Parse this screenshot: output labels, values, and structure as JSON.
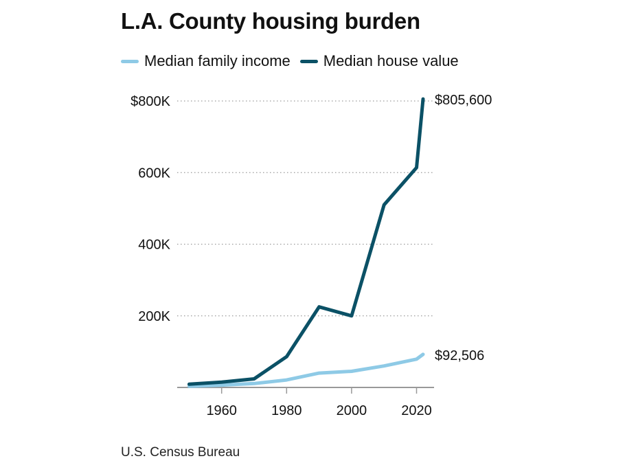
{
  "header": {
    "title": "L.A. County housing burden"
  },
  "legend": [
    {
      "label": "Median family income",
      "color": "#8ecae6"
    },
    {
      "label": "Median house value",
      "color": "#0b5166"
    }
  ],
  "source": "U.S. Census Bureau",
  "chart_data": {
    "type": "line",
    "title": "L.A. County housing burden",
    "xlabel": "",
    "ylabel": "",
    "xlim": [
      1945,
      2025
    ],
    "ylim": [
      0,
      800000
    ],
    "x_ticks": [
      1960,
      1980,
      2000,
      2020
    ],
    "x_tick_labels": [
      "1960",
      "1980",
      "2000",
      "2020"
    ],
    "y_ticks": [
      200000,
      400000,
      600000,
      800000
    ],
    "y_tick_labels": [
      "200K",
      "400K",
      "600K",
      "$800K"
    ],
    "grid": "horizontal dotted",
    "legend_position": "top-left",
    "series": [
      {
        "name": "Median family income",
        "color": "#8ecae6",
        "x": [
          1950,
          1960,
          1970,
          1980,
          1990,
          2000,
          2010,
          2020,
          2022
        ],
        "values": [
          3000,
          6500,
          11000,
          21000,
          40000,
          45000,
          60000,
          79000,
          92506
        ],
        "end_label": "$92,506"
      },
      {
        "name": "Median house value",
        "color": "#0b5166",
        "x": [
          1950,
          1960,
          1970,
          1980,
          1990,
          2000,
          2010,
          2020,
          2022
        ],
        "values": [
          9000,
          15000,
          24000,
          86000,
          225000,
          200000,
          510000,
          614000,
          805600
        ],
        "end_label": "$805,600"
      }
    ]
  }
}
